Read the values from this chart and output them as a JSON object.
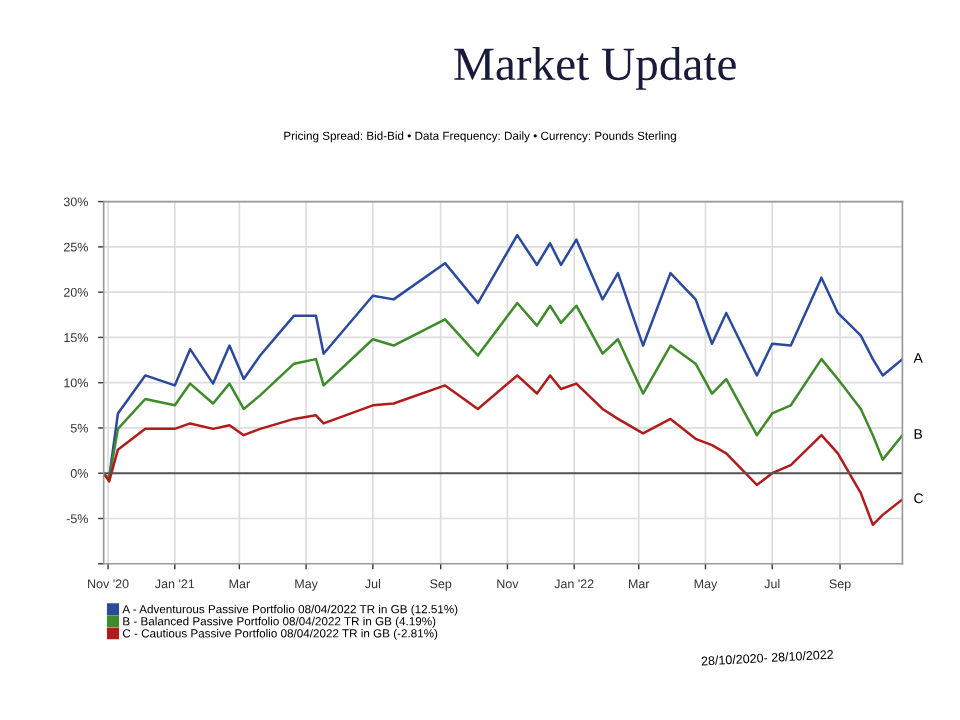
{
  "chart_data": {
    "type": "line",
    "title": "Market Update",
    "subtitle": "Pricing Spread: Bid-Bid • Data Frequency: Daily • Currency: Pounds Sterling",
    "x": [
      "2020-10-28",
      "2020-11-02",
      "2020-11-10",
      "2020-12-05",
      "2021-01-01",
      "2021-01-15",
      "2021-02-05",
      "2021-02-20",
      "2021-03-05",
      "2021-03-20",
      "2021-04-20",
      "2021-05-10",
      "2021-05-17",
      "2021-07-01",
      "2021-07-20",
      "2021-09-05",
      "2021-10-05",
      "2021-11-10",
      "2021-11-28",
      "2021-12-10",
      "2021-12-20",
      "2022-01-03",
      "2022-01-27",
      "2022-02-10",
      "2022-03-05",
      "2022-03-30",
      "2022-04-22",
      "2022-05-07",
      "2022-05-20",
      "2022-06-17",
      "2022-07-01",
      "2022-07-18",
      "2022-08-15",
      "2022-08-30",
      "2022-09-20",
      "2022-10-01",
      "2022-10-10",
      "2022-10-28"
    ],
    "series": [
      {
        "name": "A - Adventurous Passive Portfolio 08/04/2022 TR in GB (12.51%)",
        "color": "#2b4a9b",
        "values": [
          -0.2,
          -0.5,
          6.6,
          10.8,
          9.7,
          13.7,
          9.9,
          14.1,
          10.4,
          13.0,
          17.4,
          17.4,
          13.2,
          19.6,
          19.2,
          23.2,
          18.8,
          26.3,
          23.0,
          25.4,
          23.0,
          25.8,
          19.2,
          22.1,
          14.1,
          22.1,
          19.2,
          14.3,
          17.7,
          10.8,
          14.3,
          14.1,
          21.6,
          17.7,
          15.2,
          12.6,
          10.8,
          12.6
        ]
      },
      {
        "name": "B - Balanced Passive Portfolio 08/04/2022 TR in GB (4.19%)",
        "color": "#3f8a2a",
        "values": [
          0,
          -0.7,
          4.9,
          8.2,
          7.5,
          9.9,
          7.7,
          9.9,
          7.1,
          8.6,
          12.1,
          12.6,
          9.7,
          14.8,
          14.1,
          17.0,
          13.0,
          18.8,
          16.3,
          18.5,
          16.6,
          18.5,
          13.2,
          14.8,
          8.8,
          14.1,
          12.1,
          8.8,
          10.4,
          4.2,
          6.6,
          7.5,
          12.6,
          10.4,
          7.1,
          4.2,
          1.5,
          4.2
        ]
      },
      {
        "name": "C - Cautious Passive Portfolio 08/04/2022 TR in GB (-2.81%)",
        "color": "#b01c1c",
        "values": [
          0,
          -0.9,
          2.6,
          4.9,
          4.9,
          5.5,
          4.9,
          5.3,
          4.2,
          4.9,
          6.0,
          6.4,
          5.5,
          7.5,
          7.7,
          9.7,
          7.1,
          10.8,
          8.8,
          10.8,
          9.3,
          9.9,
          7.1,
          6.0,
          4.4,
          6.0,
          3.8,
          3.1,
          2.2,
          -1.3,
          0,
          0.9,
          4.2,
          2.2,
          -2.2,
          -5.7,
          -4.6,
          -2.9
        ]
      }
    ],
    "xlim": [
      "2020-10-28",
      "2022-10-28"
    ],
    "xticks": [
      {
        "value": "2020-11-01",
        "label": "Nov '20"
      },
      {
        "value": "2021-01-01",
        "label": "Jan '21"
      },
      {
        "value": "2021-03-01",
        "label": "Mar"
      },
      {
        "value": "2021-05-01",
        "label": "May"
      },
      {
        "value": "2021-07-01",
        "label": "Jul"
      },
      {
        "value": "2021-09-01",
        "label": "Sep"
      },
      {
        "value": "2021-11-01",
        "label": "Nov"
      },
      {
        "value": "2022-01-01",
        "label": "Jan '22"
      },
      {
        "value": "2022-03-01",
        "label": "Mar"
      },
      {
        "value": "2022-05-01",
        "label": "May"
      },
      {
        "value": "2022-07-01",
        "label": "Jul"
      },
      {
        "value": "2022-09-01",
        "label": "Sep"
      }
    ],
    "ylim": [
      -10,
      30
    ],
    "yticks": [
      {
        "value": -10,
        "label": null
      },
      {
        "value": -5,
        "label": "-5%"
      },
      {
        "value": 0,
        "label": "0%"
      },
      {
        "value": 5,
        "label": "5%"
      },
      {
        "value": 10,
        "label": "10%"
      },
      {
        "value": 15,
        "label": "15%"
      },
      {
        "value": 20,
        "label": "20%"
      },
      {
        "value": 25,
        "label": "25%"
      },
      {
        "value": 30,
        "label": "30%"
      }
    ],
    "ref_lines": [
      {
        "axis": "y",
        "value": 0,
        "color": "#555555"
      }
    ],
    "grid": true,
    "legend": "bottom",
    "annotations": [
      {
        "text": "A",
        "x": "2022-10-28",
        "y": 12.6
      },
      {
        "text": "B",
        "x": "2022-10-28",
        "y": 4.2
      },
      {
        "text": "C",
        "x": "2022-10-28",
        "y": -2.9
      },
      "28/10/2020- 28/10/2022"
    ]
  }
}
